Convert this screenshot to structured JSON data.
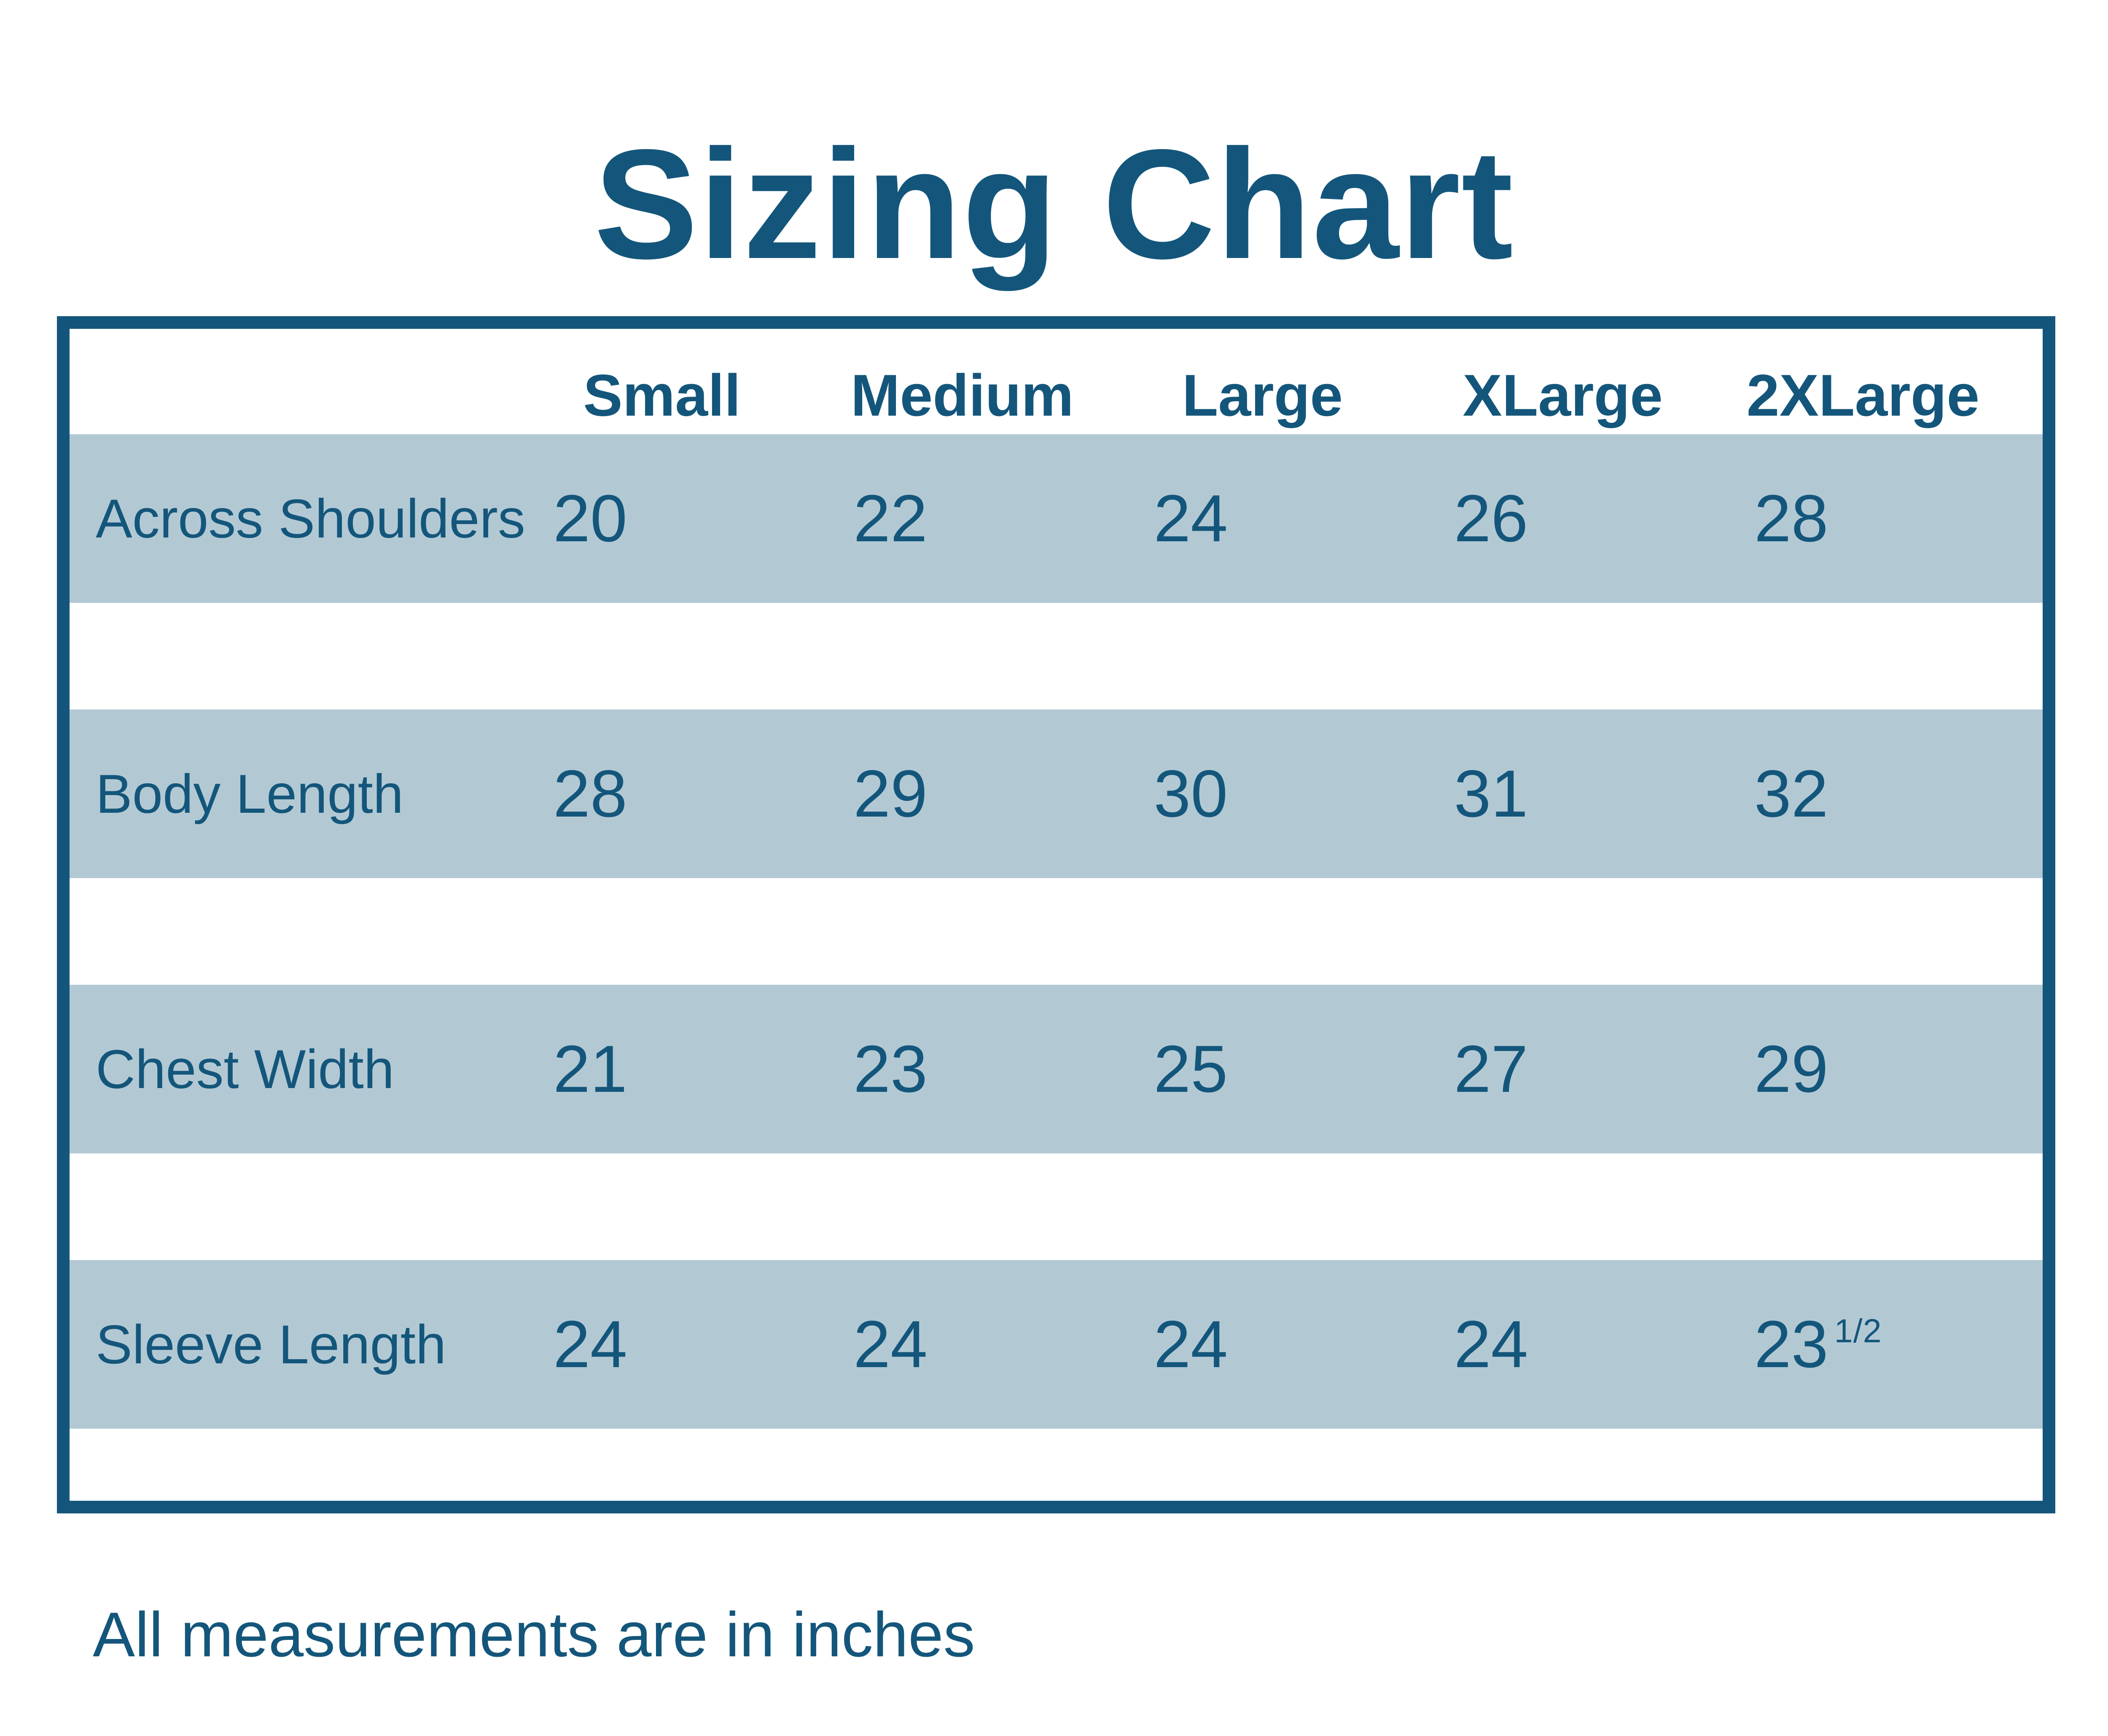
{
  "title": "Sizing Chart",
  "footer_note": "All measurements are in inches",
  "colors": {
    "accent_dark_blue": "#14567B",
    "row_band_blue": "#B2C9D4",
    "background": "#FFFFFF"
  },
  "table": {
    "columns": [
      "Small",
      "Medium",
      "Large",
      "XLarge",
      "2XLarge"
    ],
    "rows": [
      {
        "label": "Across Shoulders",
        "values": [
          "20",
          "22",
          "24",
          "26",
          "28"
        ]
      },
      {
        "label": "Body Length",
        "values": [
          "28",
          "29",
          "30",
          "31",
          "32"
        ]
      },
      {
        "label": "Chest Width",
        "values": [
          "21",
          "23",
          "25",
          "27",
          "29"
        ]
      },
      {
        "label": "Sleeve Length",
        "values": [
          "24",
          "24",
          "24",
          "24",
          "23"
        ],
        "fraction": "1/2"
      }
    ]
  },
  "chart_data": {
    "type": "table",
    "title": "Sizing Chart",
    "columns": [
      "Small",
      "Medium",
      "Large",
      "XLarge",
      "2XLarge"
    ],
    "rows": [
      {
        "label": "Across Shoulders",
        "values": [
          20,
          22,
          24,
          26,
          28
        ]
      },
      {
        "label": "Body Length",
        "values": [
          28,
          29,
          30,
          31,
          32
        ]
      },
      {
        "label": "Chest Width",
        "values": [
          21,
          23,
          25,
          27,
          29
        ]
      },
      {
        "label": "Sleeve Length",
        "values": [
          24,
          24,
          24,
          24,
          23.5
        ]
      }
    ],
    "units": "inches",
    "note": "All measurements are in inches",
    "layout": {
      "striped_rows": true,
      "band_color": "#B2C9D4",
      "border_color": "#14567B",
      "grid": "none"
    }
  }
}
